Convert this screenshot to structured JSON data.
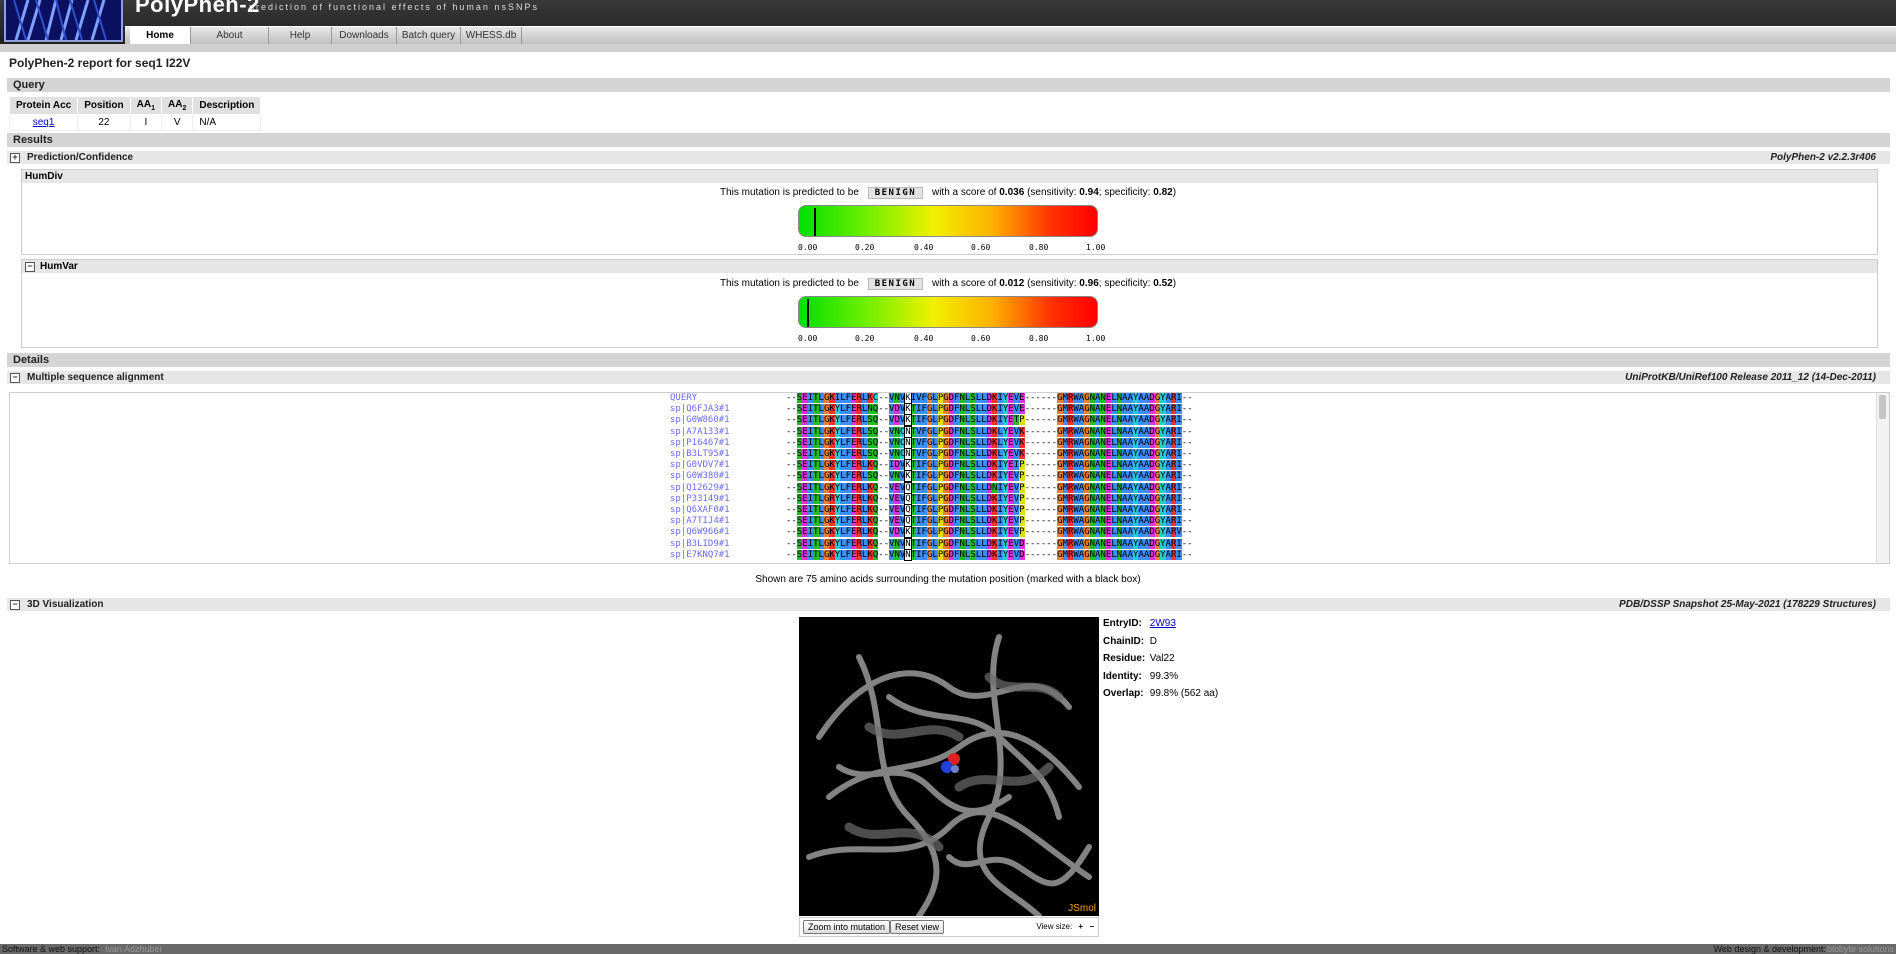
{
  "header": {
    "brand": "PolyPhen-2",
    "tagline": "prediction of functional effects of human nsSNPs",
    "nav": [
      "Home",
      "About",
      "Help",
      "Downloads",
      "Batch query",
      "WHESS.db"
    ]
  },
  "report_title": "PolyPhen-2 report for seq1 I22V",
  "query": {
    "section": "Query",
    "headers": [
      "Protein Acc",
      "Position",
      "AA1",
      "AA2",
      "Description"
    ],
    "row": [
      "seq1",
      "22",
      "I",
      "V",
      "N/A"
    ]
  },
  "results": {
    "section": "Results",
    "prediction_label": "Prediction/Confidence",
    "version": "PolyPhen-2 v2.2.3r406",
    "humdiv": {
      "label": "HumDiv",
      "prefix": "This mutation is predicted to be",
      "call": "BENIGN",
      "score_text": "with a score of",
      "score": "0.036",
      "sensitivity_text": "(sensitivity:",
      "sensitivity": "0.94",
      "specificity_text": "; specificity:",
      "specificity": "0.82",
      "close": ")",
      "score_value": 0.036
    },
    "humvar": {
      "label": "HumVar",
      "prefix": "This mutation is predicted to be",
      "call": "BENIGN",
      "score_text": "with a score of",
      "score": "0.012",
      "sensitivity_text": "(sensitivity:",
      "sensitivity": "0.96",
      "specificity_text": "; specificity:",
      "specificity": "0.52",
      "close": ")",
      "score_value": 0.012
    },
    "ticks": [
      "0.00",
      "0.20",
      "0.40",
      "0.60",
      "0.80",
      "1.00"
    ]
  },
  "details": {
    "section": "Details",
    "msa_label": "Multiple sequence alignment",
    "msa_source": "UniProtKB/UniRef100 Release 2011_12 (14-Dec-2011)",
    "alignment": [
      {
        "name": "QUERY",
        "seq": "--SEITLGKILFERLKC--VNVKIVFGLPGDFNLSLLDKIYEVE------GMRWAGNANELNAAYAADGYARI--"
      },
      {
        "name": "sp|Q6FJA3#1",
        "seq": "--SEITLGKYLFERLNQ--VDVKTIFGLPGDFNLSLLDKIYEVE------GMRWAGNANELNAAYAADGYARI--"
      },
      {
        "name": "sp|G0W860#1",
        "seq": "--SEITLGKYLFERLSQ--VDVKTIFGLPGDFNLSLLDKIYETP------GMRWAGNANELNAAYAADGYARI--"
      },
      {
        "name": "sp|A7A133#1",
        "seq": "--SEITLGKYLFERLSQ--VNCNTVFGLPGDFNLSLLDKLYEVK------GMRWAGNANELNAAYAADGYARI--"
      },
      {
        "name": "sp|P16467#1",
        "seq": "--SEITLGKYLFERLSQ--VNCNTVFGLPGDFNLSLLDKLYEVK------GMRWAGNANELNAAYAADGYARI--"
      },
      {
        "name": "sp|B3LT95#1",
        "seq": "--SEITLGKYLFERLSQ--VNCNTVFGLPGDFNLSLLDKLYEVK------GMRWAGNANELNAAYAADGYARI--"
      },
      {
        "name": "sp|G0VDV7#1",
        "seq": "--SEITLGKYLFERLKQ--IDVKTIFGLPGDFNLSLLDKIYEIP------GMRWAGNANELNAAYAADGYARI--"
      },
      {
        "name": "sp|G0W380#1",
        "seq": "--SEITLGKYLFERLSQ--VNVKTIFGLPGDFNLSLLDKIYEVP------GMRWAGNANELNAAYAADGYARI--"
      },
      {
        "name": "sp|Q12629#1",
        "seq": "--SEITLGKYLFERLKQ--VEVQTIFGLPGDFNLSLLDNIYEVP------GMRWAGNANELNAAYAADGYARI--"
      },
      {
        "name": "sp|P33149#1",
        "seq": "--SEITLGRYLFERLKQ--VEVQTIFGLPGDFNLSLLDKIYEVP------GMRWAGNANELNAAYAADGYARI--"
      },
      {
        "name": "sp|Q6XAF0#1",
        "seq": "--SEITLGRYLFERLKQ--VEVQTIFGLPGDFNLSLLDKIYEVP------GMRWAGNANELNAAYAADGYARI--"
      },
      {
        "name": "sp|A7TIJ4#1",
        "seq": "--SEITLGKYLFERLKQ--VEVQTIFGLPGDFNLSLLDKIYEVP------GMRWAGNANELNAAYAADGYARI--"
      },
      {
        "name": "sp|Q6W966#1",
        "seq": "--SEITLGKYLFERLKQ--VDVKTIFGLPGDFNLSLLDKIYEVP------GMRWAGNANELNAAYAADGYARV--"
      },
      {
        "name": "sp|B3LID9#1",
        "seq": "--SEITLGKYLFERLKQ--VNVNTIFGLPGDFNLSLLDKIYEVD------GMRWAGNANELNAAYAADGYARI--"
      },
      {
        "name": "sp|E7KNQ7#1",
        "seq": "--SEITLGKYLFERLKQ--VNVNTIFGLPGDFNLSLLDKIYEVD------GMRWAGNANELNAAYAADGYARI--"
      }
    ],
    "shown_note": "Shown are 75 amino acids surrounding the mutation position (marked with a black box)",
    "viz_label": "3D Visualization",
    "viz_source": "PDB/DSSP Snapshot 25-May-2021 (178229 Structures)",
    "jsmol": "JSmol",
    "zoom_button": "Zoom into mutation",
    "reset_button": "Reset view",
    "view_size": "View size:",
    "plus": "+",
    "minus": "−",
    "info": {
      "entry_label": "EntryID:",
      "entry": "2W93",
      "chain_label": "ChainID:",
      "chain": "D",
      "residue_label": "Residue:",
      "residue": "Val22",
      "identity_label": "Identity:",
      "identity": "99.3%",
      "overlap_label": "Overlap:",
      "overlap": "99.8% (562 aa)"
    }
  },
  "footer": {
    "left_label": "Software & web support:",
    "left_name": "Ivan Adzhubei",
    "right_label": "Web design & development:",
    "right_name": "biobyte solutions"
  },
  "colors": {
    "hydrophobic": "#3b8fff",
    "polar": "#20c020",
    "glycine": "#f08030",
    "proline": "#e0e000",
    "acidic": "#e030e0",
    "basic": "#ff3030",
    "cyan": "#20d0d0"
  }
}
